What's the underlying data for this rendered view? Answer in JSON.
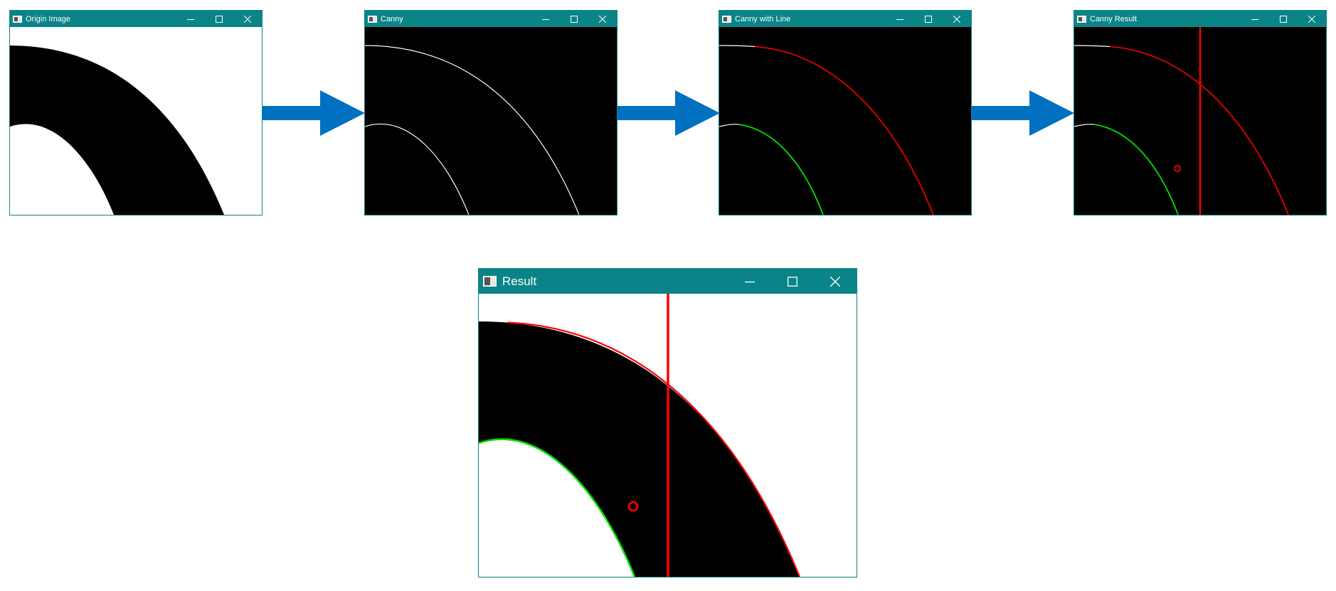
{
  "windows": {
    "origin": {
      "title": "Origin Image"
    },
    "canny": {
      "title": "Canny"
    },
    "canny_with_line": {
      "title": "Canny with Line"
    },
    "canny_result": {
      "title": "Canny Result"
    },
    "result": {
      "title": "Result"
    }
  },
  "controls": [
    "minimize-icon",
    "maximize-icon",
    "close-icon"
  ],
  "colors": {
    "titlebar": "#0b8487",
    "arrow": "#0070c0",
    "outer_edge": "#ff0000",
    "inner_edge": "#00e000",
    "edge_plain": "#ffffff",
    "marker": "#ff0000"
  }
}
